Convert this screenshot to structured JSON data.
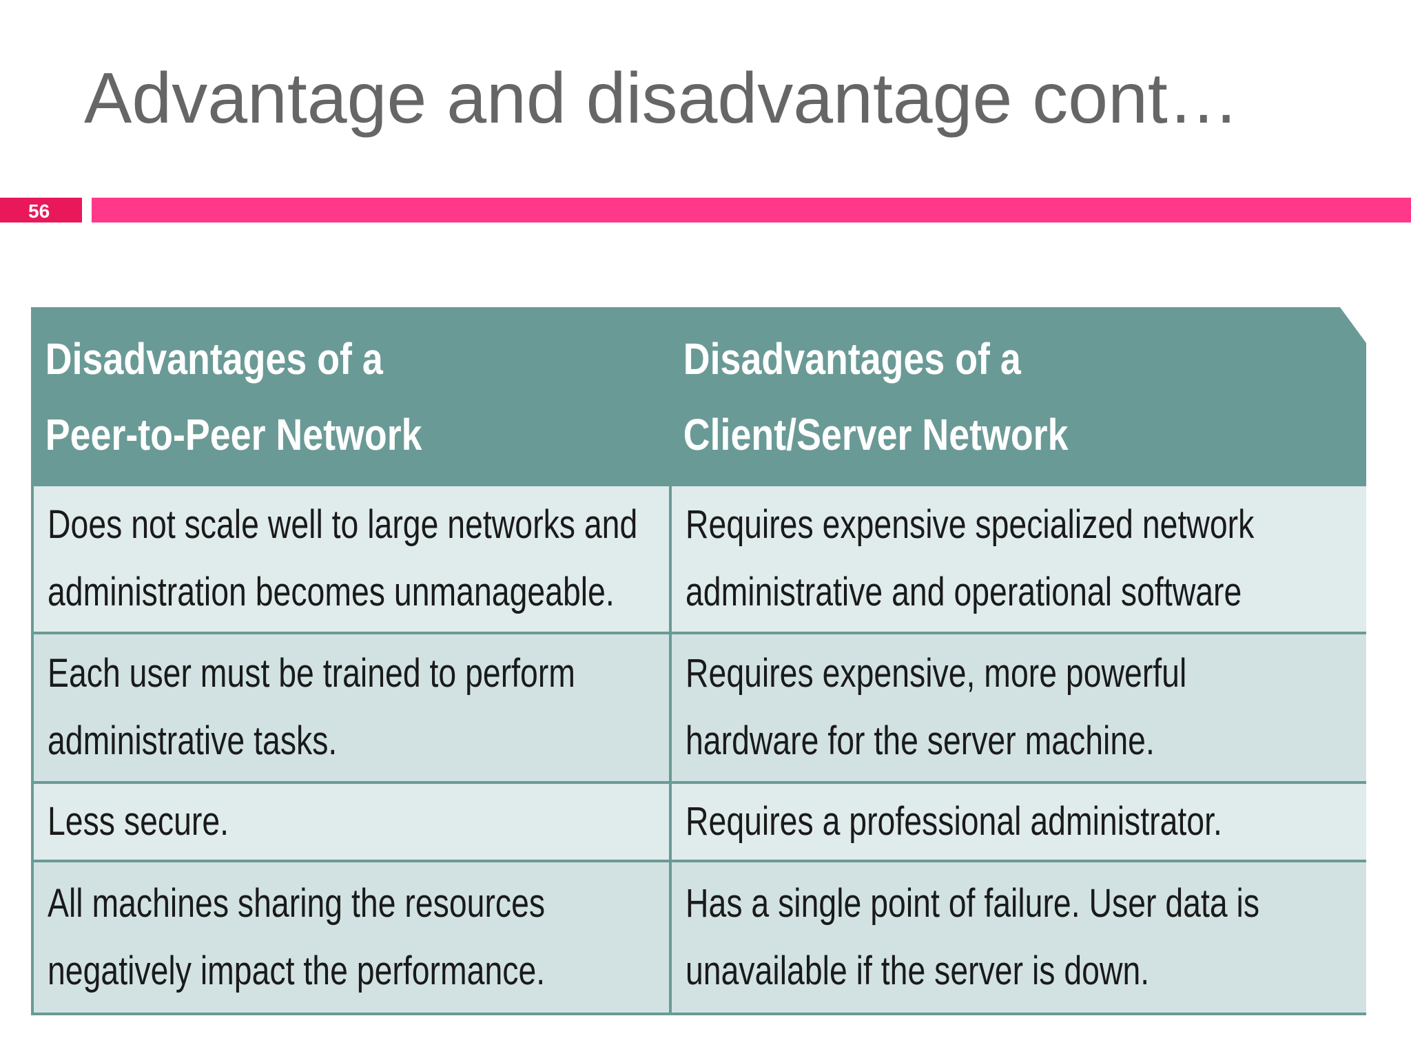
{
  "slide": {
    "title": "Advantage and disadvantage cont…",
    "number": "56",
    "colors": {
      "title_text": "#666666",
      "number_badge": "#e8185b",
      "accent_bar": "#ff3889",
      "table_header": "#6a9a96",
      "row_light": "#e0ebec",
      "row_dark": "#d2e2e3"
    }
  },
  "table": {
    "headers": [
      "Disadvantages of a\nPeer-to-Peer Network",
      "Disadvantages of a\nClient/Server Network"
    ],
    "rows": [
      [
        "Does not scale well to large networks and\nadministration becomes unmanageable.",
        "Requires expensive specialized network\nadministrative and operational software"
      ],
      [
        "Each user must be trained to perform\nadministrative tasks.",
        "Requires expensive, more powerful\nhardware for the server machine."
      ],
      [
        "Less secure.",
        "Requires a professional administrator."
      ],
      [
        "All machines sharing the resources\nnegatively impact the performance.",
        "Has a single point of failure. User data is\nunavailable if the server is down."
      ]
    ]
  }
}
